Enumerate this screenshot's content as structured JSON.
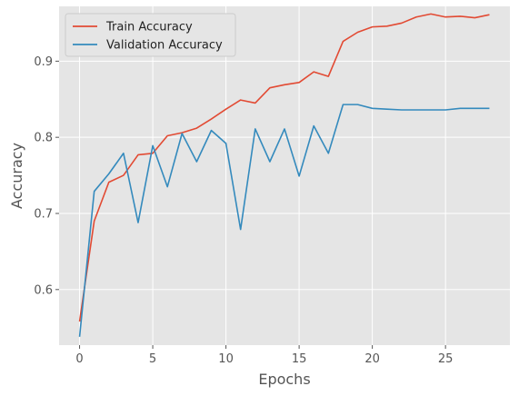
{
  "chart_data": {
    "type": "line",
    "xlabel": "Epochs",
    "ylabel": "Accuracy",
    "xlim": [
      -1.4,
      29.4
    ],
    "ylim": [
      0.527,
      0.972
    ],
    "xticks": [
      0,
      5,
      10,
      15,
      20,
      25
    ],
    "yticks": [
      0.6,
      0.7,
      0.8,
      0.9
    ],
    "grid": true,
    "legend_position": "top-left",
    "background": "#e5e5e5",
    "x": [
      0,
      1,
      2,
      3,
      4,
      5,
      6,
      7,
      8,
      9,
      10,
      11,
      12,
      13,
      14,
      15,
      16,
      17,
      18,
      19,
      20,
      21,
      22,
      23,
      24,
      25,
      26,
      27,
      28
    ],
    "series": [
      {
        "name": "Train Accuracy",
        "color": "#e24a33",
        "values": [
          0.558,
          0.69,
          0.741,
          0.75,
          0.777,
          0.779,
          0.802,
          0.806,
          0.812,
          0.824,
          0.837,
          0.849,
          0.845,
          0.865,
          0.869,
          0.872,
          0.886,
          0.88,
          0.926,
          0.938,
          0.945,
          0.946,
          0.95,
          0.958,
          0.962,
          0.958,
          0.959,
          0.957,
          0.961
        ]
      },
      {
        "name": "Validation Accuracy",
        "color": "#348abd",
        "values": [
          0.538,
          0.729,
          0.752,
          0.779,
          0.688,
          0.789,
          0.735,
          0.805,
          0.768,
          0.809,
          0.792,
          0.679,
          0.811,
          0.768,
          0.811,
          0.749,
          0.815,
          0.779,
          0.843,
          0.843,
          0.838,
          0.837,
          0.836,
          0.836,
          0.836,
          0.836,
          0.838,
          0.838,
          0.838
        ]
      }
    ]
  }
}
